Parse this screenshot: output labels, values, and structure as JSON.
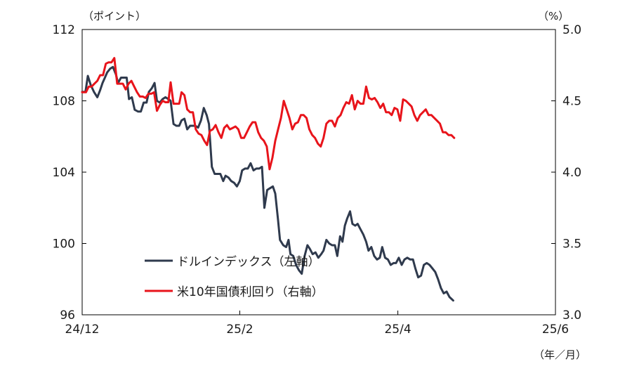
{
  "chart_data": {
    "type": "line",
    "left_axis_unit": "（ポイント）",
    "right_axis_unit": "（%）",
    "x_axis_unit": "（年／月）",
    "x_ticks": [
      {
        "label": "24/12",
        "pos": 0
      },
      {
        "label": "25/2",
        "pos": 0.333
      },
      {
        "label": "25/4",
        "pos": 0.667
      },
      {
        "label": "25/6",
        "pos": 1.0
      }
    ],
    "y_left": {
      "min": 96,
      "max": 112,
      "ticks": [
        "96",
        "100",
        "104",
        "108",
        "112"
      ]
    },
    "y_right": {
      "min": 3.0,
      "max": 5.0,
      "ticks": [
        "3.0",
        "3.5",
        "4.0",
        "4.5",
        "5.0"
      ]
    },
    "grid": false,
    "series": [
      {
        "name": "ドルインデックス（左軸）",
        "axis": "left",
        "color": "#2f3a4d",
        "points": [
          [
            0.0,
            108.5
          ],
          [
            0.007,
            108.5
          ],
          [
            0.012,
            109.4
          ],
          [
            0.018,
            108.9
          ],
          [
            0.025,
            108.5
          ],
          [
            0.032,
            108.2
          ],
          [
            0.038,
            108.6
          ],
          [
            0.043,
            109.0
          ],
          [
            0.048,
            109.3
          ],
          [
            0.053,
            109.6
          ],
          [
            0.059,
            109.8
          ],
          [
            0.065,
            109.9
          ],
          [
            0.071,
            109.5
          ],
          [
            0.076,
            109.0
          ],
          [
            0.082,
            109.3
          ],
          [
            0.088,
            109.3
          ],
          [
            0.094,
            109.3
          ],
          [
            0.099,
            108.1
          ],
          [
            0.105,
            108.2
          ],
          [
            0.111,
            107.5
          ],
          [
            0.118,
            107.4
          ],
          [
            0.124,
            107.4
          ],
          [
            0.13,
            107.9
          ],
          [
            0.136,
            107.9
          ],
          [
            0.141,
            108.5
          ],
          [
            0.147,
            108.7
          ],
          [
            0.153,
            109.0
          ],
          [
            0.158,
            108.0
          ],
          [
            0.164,
            107.9
          ],
          [
            0.17,
            108.1
          ],
          [
            0.176,
            108.2
          ],
          [
            0.182,
            108.1
          ],
          [
            0.187,
            108.0
          ],
          [
            0.193,
            106.7
          ],
          [
            0.199,
            106.6
          ],
          [
            0.205,
            106.6
          ],
          [
            0.21,
            106.9
          ],
          [
            0.216,
            107.0
          ],
          [
            0.222,
            106.4
          ],
          [
            0.228,
            106.6
          ],
          [
            0.233,
            106.6
          ],
          [
            0.239,
            106.6
          ],
          [
            0.245,
            106.5
          ],
          [
            0.251,
            106.9
          ],
          [
            0.257,
            107.6
          ],
          [
            0.263,
            107.2
          ],
          [
            0.268,
            106.7
          ],
          [
            0.274,
            104.3
          ],
          [
            0.28,
            103.9
          ],
          [
            0.286,
            103.9
          ],
          [
            0.292,
            103.9
          ],
          [
            0.298,
            103.5
          ],
          [
            0.303,
            103.8
          ],
          [
            0.309,
            103.7
          ],
          [
            0.315,
            103.5
          ],
          [
            0.321,
            103.4
          ],
          [
            0.327,
            103.2
          ],
          [
            0.333,
            103.5
          ],
          [
            0.338,
            104.1
          ],
          [
            0.344,
            104.2
          ],
          [
            0.35,
            104.2
          ],
          [
            0.356,
            104.5
          ],
          [
            0.362,
            104.1
          ],
          [
            0.368,
            104.2
          ],
          [
            0.374,
            104.2
          ],
          [
            0.38,
            104.3
          ],
          [
            0.385,
            102.0
          ],
          [
            0.391,
            103.0
          ],
          [
            0.397,
            103.1
          ],
          [
            0.403,
            103.2
          ],
          [
            0.408,
            102.8
          ],
          [
            0.414,
            101.3
          ],
          [
            0.418,
            100.2
          ],
          [
            0.425,
            99.9
          ],
          [
            0.431,
            99.8
          ],
          [
            0.436,
            100.2
          ],
          [
            0.44,
            99.4
          ],
          [
            0.446,
            99.3
          ],
          [
            0.452,
            98.8
          ],
          [
            0.458,
            98.5
          ],
          [
            0.464,
            98.3
          ],
          [
            0.47,
            99.3
          ],
          [
            0.476,
            99.9
          ],
          [
            0.481,
            99.7
          ],
          [
            0.487,
            99.4
          ],
          [
            0.493,
            99.5
          ],
          [
            0.499,
            99.2
          ],
          [
            0.505,
            99.4
          ],
          [
            0.51,
            99.6
          ],
          [
            0.516,
            100.2
          ],
          [
            0.522,
            100.0
          ],
          [
            0.528,
            99.9
          ],
          [
            0.534,
            99.9
          ],
          [
            0.539,
            99.3
          ],
          [
            0.545,
            100.4
          ],
          [
            0.55,
            100.1
          ],
          [
            0.555,
            101.0
          ],
          [
            0.56,
            101.4
          ],
          [
            0.566,
            101.8
          ],
          [
            0.571,
            101.1
          ],
          [
            0.577,
            101.0
          ],
          [
            0.582,
            101.1
          ],
          [
            0.588,
            100.8
          ],
          [
            0.594,
            100.5
          ],
          [
            0.6,
            100.1
          ],
          [
            0.605,
            99.6
          ],
          [
            0.611,
            99.8
          ],
          [
            0.617,
            99.3
          ],
          [
            0.623,
            99.1
          ],
          [
            0.629,
            99.2
          ],
          [
            0.634,
            99.8
          ],
          [
            0.64,
            99.2
          ],
          [
            0.646,
            99.1
          ],
          [
            0.652,
            98.8
          ],
          [
            0.658,
            98.9
          ],
          [
            0.663,
            98.9
          ],
          [
            0.669,
            99.2
          ],
          [
            0.675,
            98.8
          ],
          [
            0.681,
            99.1
          ],
          [
            0.687,
            99.2
          ],
          [
            0.693,
            99.1
          ],
          [
            0.699,
            99.1
          ],
          [
            0.704,
            98.6
          ],
          [
            0.71,
            98.1
          ],
          [
            0.716,
            98.2
          ],
          [
            0.722,
            98.8
          ],
          [
            0.728,
            98.9
          ],
          [
            0.734,
            98.8
          ],
          [
            0.74,
            98.6
          ],
          [
            0.746,
            98.4
          ],
          [
            0.752,
            98.0
          ],
          [
            0.758,
            97.5
          ],
          [
            0.764,
            97.2
          ],
          [
            0.77,
            97.3
          ],
          [
            0.776,
            97.0
          ],
          [
            0.784,
            96.8
          ]
        ]
      },
      {
        "name": "米10年国債利回り（右軸）",
        "axis": "right",
        "color": "#e8141b",
        "points": [
          [
            0.0,
            4.56
          ],
          [
            0.008,
            4.56
          ],
          [
            0.014,
            4.6
          ],
          [
            0.02,
            4.6
          ],
          [
            0.026,
            4.62
          ],
          [
            0.032,
            4.64
          ],
          [
            0.038,
            4.68
          ],
          [
            0.044,
            4.68
          ],
          [
            0.05,
            4.76
          ],
          [
            0.056,
            4.77
          ],
          [
            0.062,
            4.77
          ],
          [
            0.068,
            4.8
          ],
          [
            0.074,
            4.62
          ],
          [
            0.08,
            4.62
          ],
          [
            0.086,
            4.62
          ],
          [
            0.092,
            4.58
          ],
          [
            0.098,
            4.62
          ],
          [
            0.104,
            4.64
          ],
          [
            0.11,
            4.6
          ],
          [
            0.116,
            4.56
          ],
          [
            0.122,
            4.53
          ],
          [
            0.128,
            4.53
          ],
          [
            0.134,
            4.52
          ],
          [
            0.14,
            4.55
          ],
          [
            0.146,
            4.55
          ],
          [
            0.152,
            4.56
          ],
          [
            0.158,
            4.43
          ],
          [
            0.164,
            4.47
          ],
          [
            0.17,
            4.5
          ],
          [
            0.176,
            4.49
          ],
          [
            0.182,
            4.49
          ],
          [
            0.187,
            4.63
          ],
          [
            0.193,
            4.48
          ],
          [
            0.199,
            4.48
          ],
          [
            0.205,
            4.48
          ],
          [
            0.21,
            4.56
          ],
          [
            0.216,
            4.54
          ],
          [
            0.222,
            4.44
          ],
          [
            0.228,
            4.42
          ],
          [
            0.234,
            4.42
          ],
          [
            0.24,
            4.3
          ],
          [
            0.246,
            4.27
          ],
          [
            0.252,
            4.26
          ],
          [
            0.258,
            4.22
          ],
          [
            0.264,
            4.19
          ],
          [
            0.27,
            4.29
          ],
          [
            0.276,
            4.3
          ],
          [
            0.282,
            4.33
          ],
          [
            0.288,
            4.28
          ],
          [
            0.294,
            4.24
          ],
          [
            0.3,
            4.31
          ],
          [
            0.306,
            4.33
          ],
          [
            0.312,
            4.3
          ],
          [
            0.318,
            4.31
          ],
          [
            0.324,
            4.32
          ],
          [
            0.33,
            4.3
          ],
          [
            0.336,
            4.24
          ],
          [
            0.342,
            4.24
          ],
          [
            0.348,
            4.28
          ],
          [
            0.354,
            4.32
          ],
          [
            0.36,
            4.35
          ],
          [
            0.366,
            4.35
          ],
          [
            0.372,
            4.28
          ],
          [
            0.378,
            4.24
          ],
          [
            0.384,
            4.22
          ],
          [
            0.39,
            4.18
          ],
          [
            0.396,
            4.02
          ],
          [
            0.402,
            4.1
          ],
          [
            0.408,
            4.22
          ],
          [
            0.414,
            4.3
          ],
          [
            0.42,
            4.38
          ],
          [
            0.426,
            4.5
          ],
          [
            0.432,
            4.44
          ],
          [
            0.438,
            4.38
          ],
          [
            0.444,
            4.3
          ],
          [
            0.45,
            4.34
          ],
          [
            0.456,
            4.35
          ],
          [
            0.462,
            4.4
          ],
          [
            0.468,
            4.4
          ],
          [
            0.474,
            4.38
          ],
          [
            0.48,
            4.3
          ],
          [
            0.486,
            4.26
          ],
          [
            0.492,
            4.24
          ],
          [
            0.498,
            4.2
          ],
          [
            0.504,
            4.18
          ],
          [
            0.51,
            4.24
          ],
          [
            0.516,
            4.34
          ],
          [
            0.522,
            4.36
          ],
          [
            0.528,
            4.36
          ],
          [
            0.534,
            4.32
          ],
          [
            0.54,
            4.38
          ],
          [
            0.546,
            4.4
          ],
          [
            0.552,
            4.45
          ],
          [
            0.558,
            4.49
          ],
          [
            0.564,
            4.48
          ],
          [
            0.57,
            4.54
          ],
          [
            0.576,
            4.44
          ],
          [
            0.582,
            4.5
          ],
          [
            0.588,
            4.48
          ],
          [
            0.594,
            4.48
          ],
          [
            0.6,
            4.6
          ],
          [
            0.606,
            4.52
          ],
          [
            0.612,
            4.51
          ],
          [
            0.618,
            4.52
          ],
          [
            0.624,
            4.49
          ],
          [
            0.63,
            4.45
          ],
          [
            0.636,
            4.48
          ],
          [
            0.642,
            4.42
          ],
          [
            0.648,
            4.42
          ],
          [
            0.654,
            4.4
          ],
          [
            0.66,
            4.45
          ],
          [
            0.666,
            4.44
          ],
          [
            0.672,
            4.36
          ],
          [
            0.678,
            4.51
          ],
          [
            0.684,
            4.5
          ],
          [
            0.69,
            4.48
          ],
          [
            0.696,
            4.46
          ],
          [
            0.702,
            4.4
          ],
          [
            0.708,
            4.36
          ],
          [
            0.714,
            4.4
          ],
          [
            0.72,
            4.42
          ],
          [
            0.726,
            4.44
          ],
          [
            0.732,
            4.4
          ],
          [
            0.738,
            4.4
          ],
          [
            0.744,
            4.38
          ],
          [
            0.75,
            4.36
          ],
          [
            0.756,
            4.34
          ],
          [
            0.762,
            4.28
          ],
          [
            0.768,
            4.28
          ],
          [
            0.774,
            4.26
          ],
          [
            0.78,
            4.26
          ],
          [
            0.786,
            4.24
          ]
        ]
      }
    ]
  }
}
